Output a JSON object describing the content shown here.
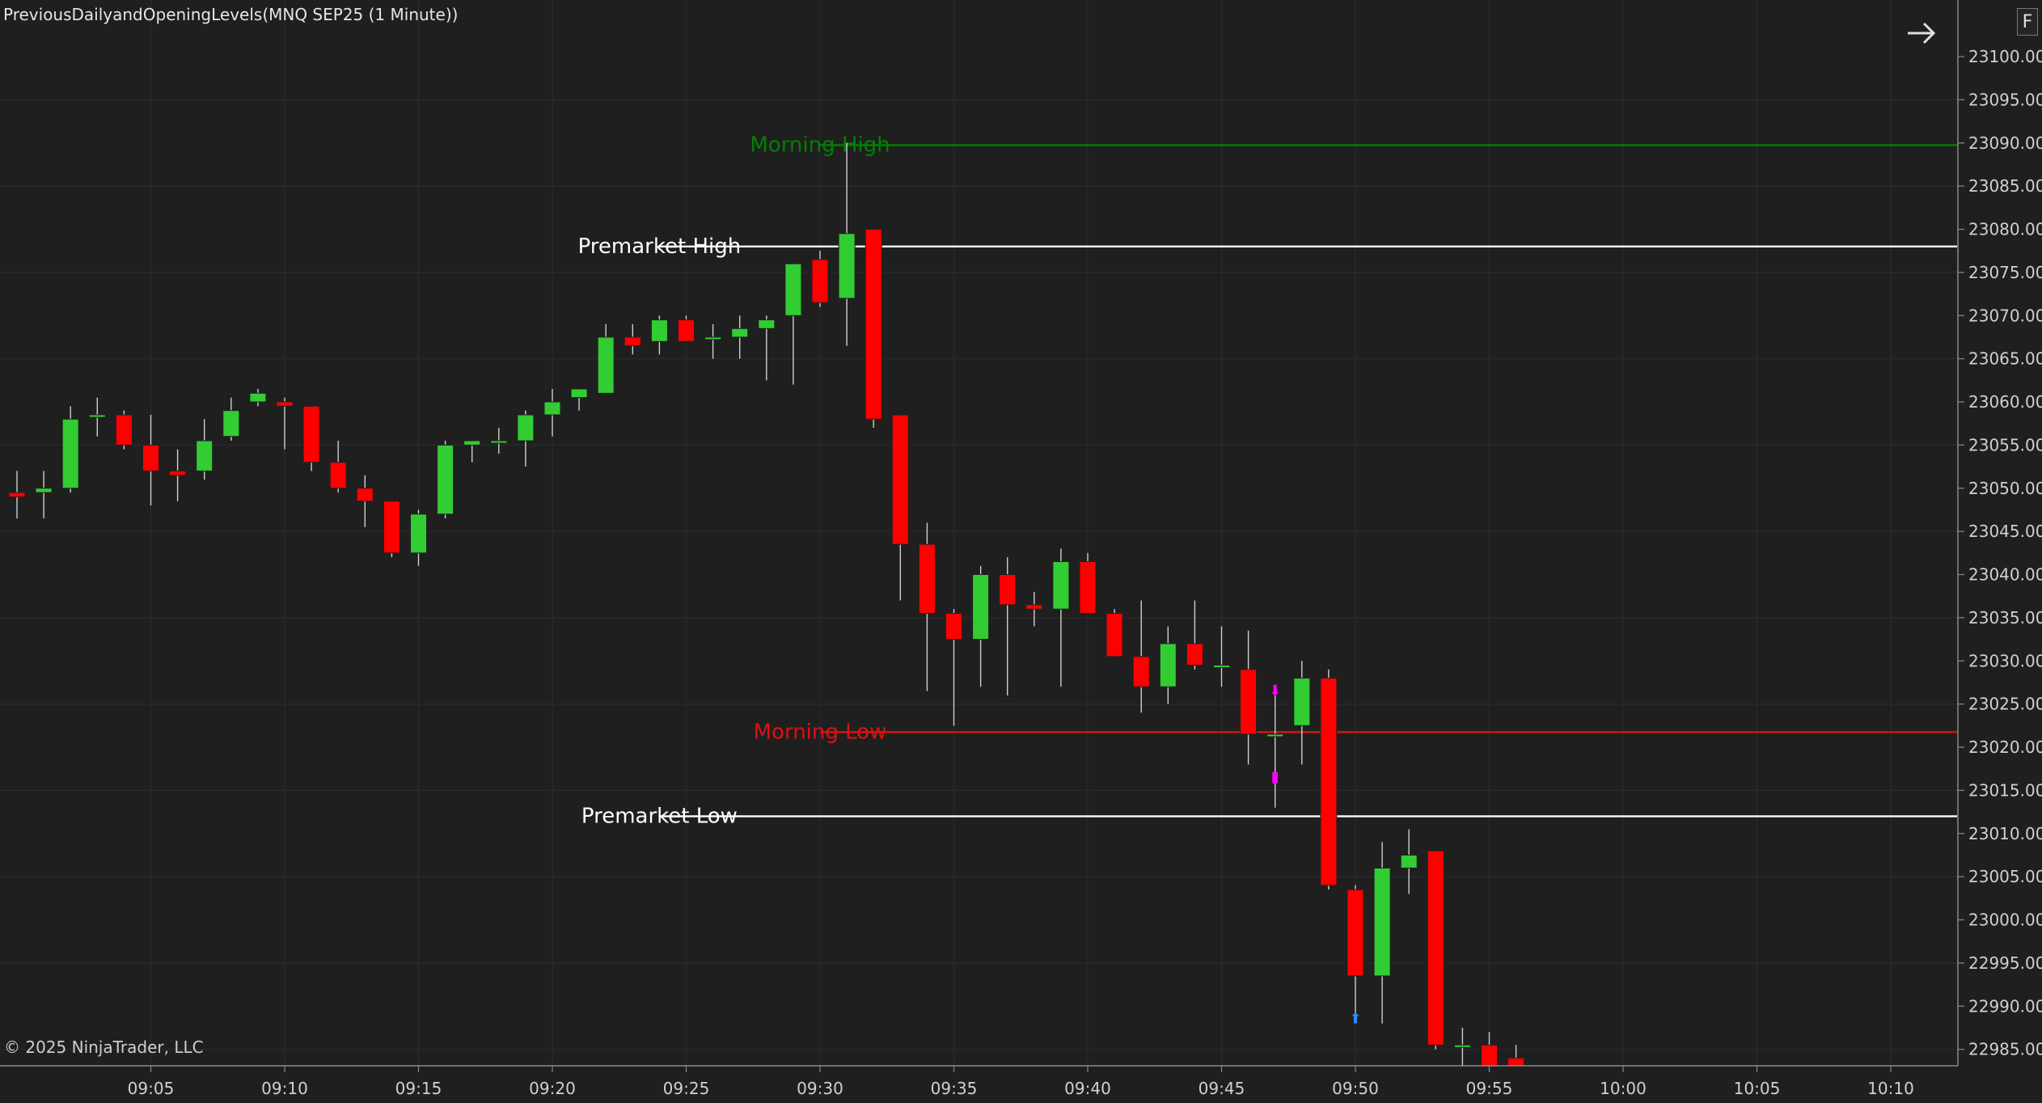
{
  "indicator_title": "PreviousDailyandOpeningLevels(MNQ SEP25 (1 Minute))",
  "copyright": "© 2025 NinjaTrader, LLC",
  "scale_button_label": "F",
  "nav_icon": "arrow-right-icon",
  "colors": {
    "background": "#1f1f1f",
    "grid": "#2b2b2b",
    "up_candle": "#32cd32",
    "down_candle": "#ff0000",
    "wick": "#cfcfcf",
    "morning_high": "#008000",
    "morning_low": "#e01010",
    "premarket": "#ffffff",
    "axis_text": "#d0d0d0",
    "signal_magenta": "#ff00ff",
    "signal_blue": "#2a8cff"
  },
  "chart_data": {
    "type": "candlestick",
    "title": "",
    "xlabel": "",
    "ylabel": "",
    "ylim": [
      22983,
      23102
    ],
    "y_ticks": [
      23100,
      23095,
      23090,
      23085,
      23080,
      23075,
      23070,
      23065,
      23060,
      23055,
      23050,
      23045,
      23040,
      23035,
      23030,
      23025,
      23020,
      23015,
      23010,
      23005,
      23000,
      22995,
      22990,
      22985
    ],
    "x_ticks": [
      "09:05",
      "09:10",
      "09:15",
      "09:20",
      "09:25",
      "09:30",
      "09:35",
      "09:40",
      "09:45",
      "09:50",
      "09:55",
      "10:00",
      "10:05",
      "10:10"
    ],
    "x_tick_minutes": [
      5,
      10,
      15,
      20,
      25,
      30,
      35,
      40,
      45,
      50,
      55,
      60,
      65,
      70
    ],
    "levels": [
      {
        "label": "Morning High",
        "value": 23089.75,
        "color": "#008000",
        "label_minute": 30
      },
      {
        "label": "Premarket High",
        "value": 23078,
        "color": "#ffffff",
        "label_minute": 24
      },
      {
        "label": "Morning Low",
        "value": 23021.75,
        "color": "#e01010",
        "label_minute": 30
      },
      {
        "label": "Premarket Low",
        "value": 23012,
        "color": "#ffffff",
        "label_minute": 24
      }
    ],
    "candles": [
      {
        "t": 0,
        "o": 23049.5,
        "h": 23052,
        "l": 23046.5,
        "c": 23049
      },
      {
        "t": 1,
        "o": 23049.5,
        "h": 23052,
        "l": 23046.5,
        "c": 23050
      },
      {
        "t": 2,
        "o": 23050,
        "h": 23059.5,
        "l": 23049.5,
        "c": 23058
      },
      {
        "t": 3,
        "o": 23058.5,
        "h": 23060.5,
        "l": 23056,
        "c": 23058.5
      },
      {
        "t": 4,
        "o": 23058.5,
        "h": 23059,
        "l": 23054.5,
        "c": 23055
      },
      {
        "t": 5,
        "o": 23055,
        "h": 23058.5,
        "l": 23048,
        "c": 23052
      },
      {
        "t": 6,
        "o": 23052,
        "h": 23054.5,
        "l": 23048.5,
        "c": 23051.5
      },
      {
        "t": 7,
        "o": 23052,
        "h": 23058,
        "l": 23051,
        "c": 23055.5
      },
      {
        "t": 8,
        "o": 23056,
        "h": 23060.5,
        "l": 23055.5,
        "c": 23059
      },
      {
        "t": 9,
        "o": 23060,
        "h": 23061.5,
        "l": 23059.5,
        "c": 23061
      },
      {
        "t": 10,
        "o": 23060,
        "h": 23060.5,
        "l": 23054.5,
        "c": 23059.5
      },
      {
        "t": 11,
        "o": 23059.5,
        "h": 23059.5,
        "l": 23052,
        "c": 23053
      },
      {
        "t": 12,
        "o": 23053,
        "h": 23055.5,
        "l": 23049.5,
        "c": 23050
      },
      {
        "t": 13,
        "o": 23050,
        "h": 23051.5,
        "l": 23045.5,
        "c": 23048.5
      },
      {
        "t": 14,
        "o": 23048.5,
        "h": 23048.5,
        "l": 23042,
        "c": 23042.5
      },
      {
        "t": 15,
        "o": 23042.5,
        "h": 23047.5,
        "l": 23041,
        "c": 23047
      },
      {
        "t": 16,
        "o": 23047,
        "h": 23055.5,
        "l": 23046.5,
        "c": 23055
      },
      {
        "t": 17,
        "o": 23055,
        "h": 23055.5,
        "l": 23053,
        "c": 23055.5
      },
      {
        "t": 18,
        "o": 23055.5,
        "h": 23057,
        "l": 23054,
        "c": 23055.5
      },
      {
        "t": 19,
        "o": 23055.5,
        "h": 23059,
        "l": 23052.5,
        "c": 23058.5
      },
      {
        "t": 20,
        "o": 23058.5,
        "h": 23061.5,
        "l": 23056,
        "c": 23060
      },
      {
        "t": 21,
        "o": 23060.5,
        "h": 23061.5,
        "l": 23059,
        "c": 23061.5
      },
      {
        "t": 22,
        "o": 23061,
        "h": 23069,
        "l": 23061,
        "c": 23067.5
      },
      {
        "t": 23,
        "o": 23067.5,
        "h": 23069,
        "l": 23065.5,
        "c": 23066.5
      },
      {
        "t": 24,
        "o": 23067,
        "h": 23070,
        "l": 23065.5,
        "c": 23069.5
      },
      {
        "t": 25,
        "o": 23069.5,
        "h": 23070,
        "l": 23067,
        "c": 23067
      },
      {
        "t": 26,
        "o": 23067.5,
        "h": 23069,
        "l": 23065,
        "c": 23067.5
      },
      {
        "t": 27,
        "o": 23067.5,
        "h": 23070,
        "l": 23065,
        "c": 23068.5
      },
      {
        "t": 28,
        "o": 23068.5,
        "h": 23070,
        "l": 23062.5,
        "c": 23069.5
      },
      {
        "t": 29,
        "o": 23070,
        "h": 23076,
        "l": 23062,
        "c": 23076
      },
      {
        "t": 30,
        "o": 23076.5,
        "h": 23077.5,
        "l": 23071,
        "c": 23071.5
      },
      {
        "t": 31,
        "o": 23072,
        "h": 23090,
        "l": 23066.5,
        "c": 23079.5
      },
      {
        "t": 32,
        "o": 23080,
        "h": 23080,
        "l": 23057,
        "c": 23058
      },
      {
        "t": 33,
        "o": 23058.5,
        "h": 23058.5,
        "l": 23037,
        "c": 23043.5
      },
      {
        "t": 34,
        "o": 23043.5,
        "h": 23046,
        "l": 23026.5,
        "c": 23035.5
      },
      {
        "t": 35,
        "o": 23035.5,
        "h": 23036,
        "l": 23022.5,
        "c": 23032.5
      },
      {
        "t": 36,
        "o": 23032.5,
        "h": 23041,
        "l": 23027,
        "c": 23040
      },
      {
        "t": 37,
        "o": 23040,
        "h": 23042,
        "l": 23026,
        "c": 23036.5
      },
      {
        "t": 38,
        "o": 23036.5,
        "h": 23038,
        "l": 23034,
        "c": 23036
      },
      {
        "t": 39,
        "o": 23036,
        "h": 23043,
        "l": 23027,
        "c": 23041.5
      },
      {
        "t": 40,
        "o": 23041.5,
        "h": 23042.5,
        "l": 23035.5,
        "c": 23035.5
      },
      {
        "t": 41,
        "o": 23035.5,
        "h": 23036,
        "l": 23030.5,
        "c": 23030.5
      },
      {
        "t": 42,
        "o": 23030.5,
        "h": 23037,
        "l": 23024,
        "c": 23027
      },
      {
        "t": 43,
        "o": 23027,
        "h": 23034,
        "l": 23025,
        "c": 23032
      },
      {
        "t": 44,
        "o": 23032,
        "h": 23037,
        "l": 23029,
        "c": 23029.5
      },
      {
        "t": 45,
        "o": 23029.5,
        "h": 23034,
        "l": 23027,
        "c": 23029.5
      },
      {
        "t": 46,
        "o": 23029,
        "h": 23033.5,
        "l": 23018,
        "c": 23021.5
      },
      {
        "t": 47,
        "o": 23021.5,
        "h": 23027,
        "l": 23013,
        "c": 23021.5
      },
      {
        "t": 48,
        "o": 23022.5,
        "h": 23030,
        "l": 23018,
        "c": 23028
      },
      {
        "t": 49,
        "o": 23028,
        "h": 23029,
        "l": 23003.5,
        "c": 23004
      },
      {
        "t": 50,
        "o": 23003.5,
        "h": 23004,
        "l": 22988.5,
        "c": 22993.5
      },
      {
        "t": 51,
        "o": 22993.5,
        "h": 23009,
        "l": 22988,
        "c": 23006
      },
      {
        "t": 52,
        "o": 23006,
        "h": 23010.5,
        "l": 23003,
        "c": 23007.5
      },
      {
        "t": 53,
        "o": 23008,
        "h": 23008,
        "l": 22985,
        "c": 22985.5
      },
      {
        "t": 54,
        "o": 22985.5,
        "h": 22987.5,
        "l": 22983,
        "c": 22985.5
      },
      {
        "t": 55,
        "o": 22985.5,
        "h": 22987,
        "l": 22983,
        "c": 22983
      },
      {
        "t": 56,
        "o": 22984,
        "h": 22985.5,
        "l": 22983,
        "c": 22983
      }
    ],
    "signals": [
      {
        "t": 47,
        "price": 23026,
        "symbol": "⬇",
        "color": "#ff00ff"
      },
      {
        "t": 47,
        "price": 23016,
        "symbol": "▮",
        "color": "#ff00ff"
      },
      {
        "t": 50,
        "price": 22988,
        "symbol": "⬆",
        "color": "#2a8cff"
      }
    ]
  }
}
